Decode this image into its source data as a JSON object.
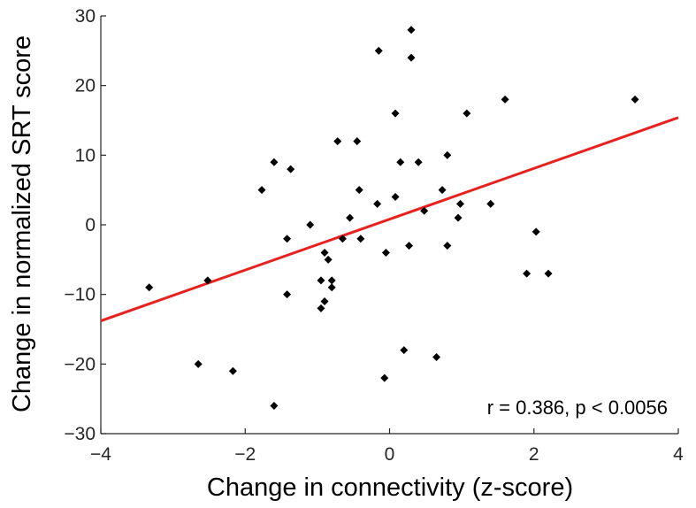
{
  "chart_data": {
    "type": "scatter",
    "title": "",
    "xlabel": "Change in connectivity (z-score)",
    "ylabel": "Change in normalized SRT score",
    "xlim": [
      -4,
      4
    ],
    "ylim": [
      -30,
      30
    ],
    "xticks": [
      -4,
      -2,
      0,
      2,
      4
    ],
    "yticks": [
      -30,
      -20,
      -10,
      0,
      10,
      20,
      30
    ],
    "xtick_labels": [
      "−4",
      "−2",
      "0",
      "2",
      "4"
    ],
    "ytick_labels": [
      "−30",
      "−20",
      "−10",
      "0",
      "10",
      "20",
      "30"
    ],
    "grid": false,
    "point_color": "#000000",
    "fit_color": "#e8211f",
    "points": [
      {
        "x": -3.33,
        "y": -9
      },
      {
        "x": -2.65,
        "y": -20
      },
      {
        "x": -2.52,
        "y": -8
      },
      {
        "x": -2.17,
        "y": -21
      },
      {
        "x": -1.77,
        "y": 5
      },
      {
        "x": -1.6,
        "y": 9
      },
      {
        "x": -1.6,
        "y": -26
      },
      {
        "x": -1.42,
        "y": -2
      },
      {
        "x": -1.42,
        "y": -10
      },
      {
        "x": -1.37,
        "y": 8
      },
      {
        "x": -1.1,
        "y": 0
      },
      {
        "x": -0.95,
        "y": -12
      },
      {
        "x": -0.95,
        "y": -8
      },
      {
        "x": -0.9,
        "y": -4
      },
      {
        "x": -0.9,
        "y": -11
      },
      {
        "x": -0.85,
        "y": -5
      },
      {
        "x": -0.8,
        "y": -8
      },
      {
        "x": -0.8,
        "y": -9
      },
      {
        "x": -0.72,
        "y": 12
      },
      {
        "x": -0.65,
        "y": -2
      },
      {
        "x": -0.55,
        "y": 1
      },
      {
        "x": -0.45,
        "y": 12
      },
      {
        "x": -0.42,
        "y": 5
      },
      {
        "x": -0.4,
        "y": -2
      },
      {
        "x": -0.17,
        "y": 3
      },
      {
        "x": -0.15,
        "y": 25
      },
      {
        "x": -0.07,
        "y": -22
      },
      {
        "x": -0.05,
        "y": -4
      },
      {
        "x": 0.08,
        "y": 16
      },
      {
        "x": 0.08,
        "y": 4
      },
      {
        "x": 0.15,
        "y": 9
      },
      {
        "x": 0.2,
        "y": -18
      },
      {
        "x": 0.27,
        "y": -3
      },
      {
        "x": 0.3,
        "y": 28
      },
      {
        "x": 0.3,
        "y": 24
      },
      {
        "x": 0.4,
        "y": 9
      },
      {
        "x": 0.48,
        "y": 2
      },
      {
        "x": 0.65,
        "y": -19
      },
      {
        "x": 0.73,
        "y": 5
      },
      {
        "x": 0.8,
        "y": 10
      },
      {
        "x": 0.8,
        "y": -3
      },
      {
        "x": 0.95,
        "y": 1
      },
      {
        "x": 0.98,
        "y": 3
      },
      {
        "x": 1.07,
        "y": 16
      },
      {
        "x": 1.4,
        "y": 3
      },
      {
        "x": 1.6,
        "y": 18
      },
      {
        "x": 1.9,
        "y": -7
      },
      {
        "x": 2.03,
        "y": -1
      },
      {
        "x": 2.2,
        "y": -7
      },
      {
        "x": 3.4,
        "y": 18
      }
    ],
    "fit_line": {
      "x": [
        -4,
        4
      ],
      "y": [
        -13.8,
        15.4
      ]
    },
    "annotation": "r = 0.386, p < 0.0056"
  }
}
